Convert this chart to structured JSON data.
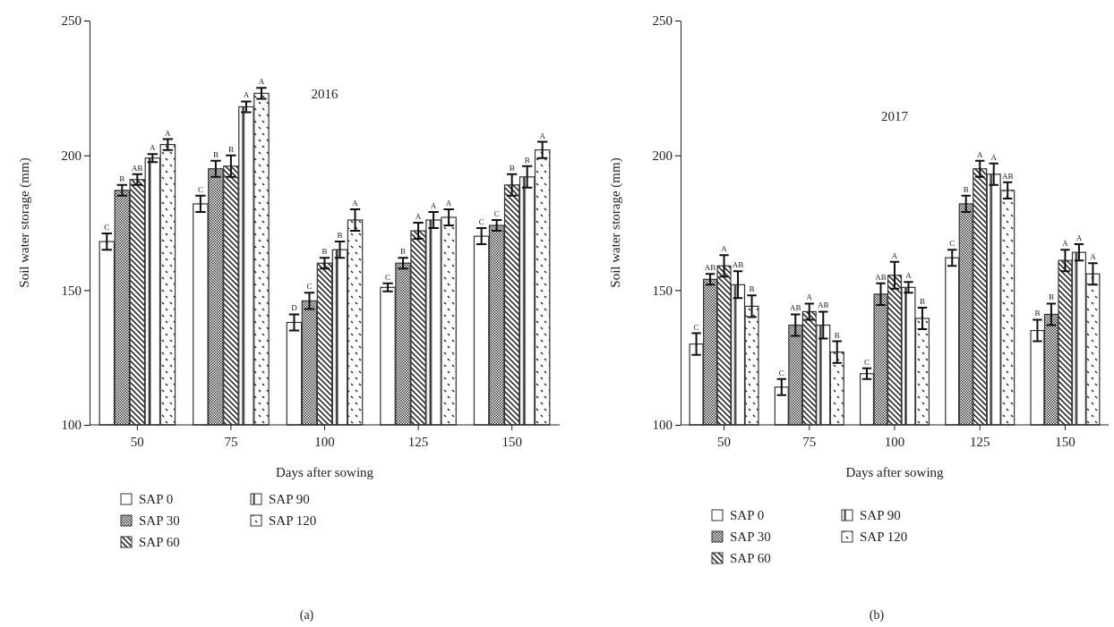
{
  "chart_data": [
    {
      "type": "bar",
      "title": "2016",
      "xlabel": "Days after sowing",
      "ylabel": "Soil water storage (mm)",
      "categories": [
        "50",
        "75",
        "100",
        "125",
        "150"
      ],
      "ylim": [
        100,
        250
      ],
      "yticks": [
        100,
        150,
        200,
        250
      ],
      "legend": "bottom",
      "annotations": [
        "(a)"
      ],
      "series": [
        {
          "name": "SAP 0",
          "color": "#333333",
          "values": [
            168,
            182,
            138,
            151,
            170
          ],
          "errors": [
            3,
            3,
            3,
            1.5,
            3
          ],
          "value_labels": [
            "C",
            "C",
            "D",
            "C",
            "C"
          ]
        },
        {
          "name": "SAP 30",
          "color": "#333333",
          "values": [
            187,
            195,
            146,
            160,
            174
          ],
          "errors": [
            2,
            3,
            3,
            2,
            2
          ],
          "value_labels": [
            "B",
            "B",
            "C",
            "B",
            "C"
          ]
        },
        {
          "name": "SAP 60",
          "color": "#333333",
          "values": [
            191,
            196,
            160,
            172,
            189
          ],
          "errors": [
            2,
            4,
            2,
            3,
            4
          ],
          "value_labels": [
            "AB",
            "B",
            "B",
            "A",
            "B"
          ]
        },
        {
          "name": "SAP 90",
          "color": "#333333",
          "values": [
            199,
            218,
            165,
            176,
            192
          ],
          "errors": [
            1.5,
            2,
            3,
            3,
            4
          ],
          "value_labels": [
            "A",
            "A",
            "B",
            "A",
            "B"
          ]
        },
        {
          "name": "SAP 120",
          "color": "#333333",
          "values": [
            204,
            223,
            176,
            177,
            202
          ],
          "errors": [
            2,
            2,
            4,
            3,
            3
          ],
          "value_labels": [
            "A",
            "A",
            "A",
            "A",
            "A"
          ]
        }
      ]
    },
    {
      "type": "bar",
      "title": "2017",
      "xlabel": "Days after sowing",
      "ylabel": "Soil water storage (mm)",
      "categories": [
        "50",
        "75",
        "100",
        "125",
        "150"
      ],
      "ylim": [
        100,
        250
      ],
      "yticks": [
        100,
        150,
        200,
        250
      ],
      "legend": "bottom",
      "annotations": [
        "(b)"
      ],
      "series": [
        {
          "name": "SAP 0",
          "color": "#333333",
          "values": [
            130,
            114,
            119,
            162,
            135
          ],
          "errors": [
            4,
            3,
            2,
            3,
            4
          ],
          "value_labels": [
            "C",
            "C",
            "C",
            "C",
            "B"
          ]
        },
        {
          "name": "SAP 30",
          "color": "#333333",
          "values": [
            154,
            137,
            148.5,
            182,
            141
          ],
          "errors": [
            2,
            4,
            4,
            3,
            4
          ],
          "value_labels": [
            "AB",
            "AB",
            "AB",
            "B",
            "B"
          ]
        },
        {
          "name": "SAP 60",
          "color": "#333333",
          "values": [
            159,
            142,
            155.5,
            195,
            161
          ],
          "errors": [
            4,
            3,
            5,
            3,
            4
          ],
          "value_labels": [
            "A",
            "A",
            "A",
            "A",
            "A"
          ]
        },
        {
          "name": "SAP 90",
          "color": "#333333",
          "values": [
            152,
            137,
            151,
            193,
            164
          ],
          "errors": [
            5,
            5,
            2,
            4,
            3
          ],
          "value_labels": [
            "AB",
            "AB",
            "A",
            "A",
            "A"
          ]
        },
        {
          "name": "SAP 120",
          "color": "#333333",
          "values": [
            144,
            127,
            139.5,
            187,
            156
          ],
          "errors": [
            4,
            4,
            4,
            3,
            4
          ],
          "value_labels": [
            "B",
            "B",
            "B",
            "AB",
            "A"
          ]
        }
      ]
    }
  ]
}
